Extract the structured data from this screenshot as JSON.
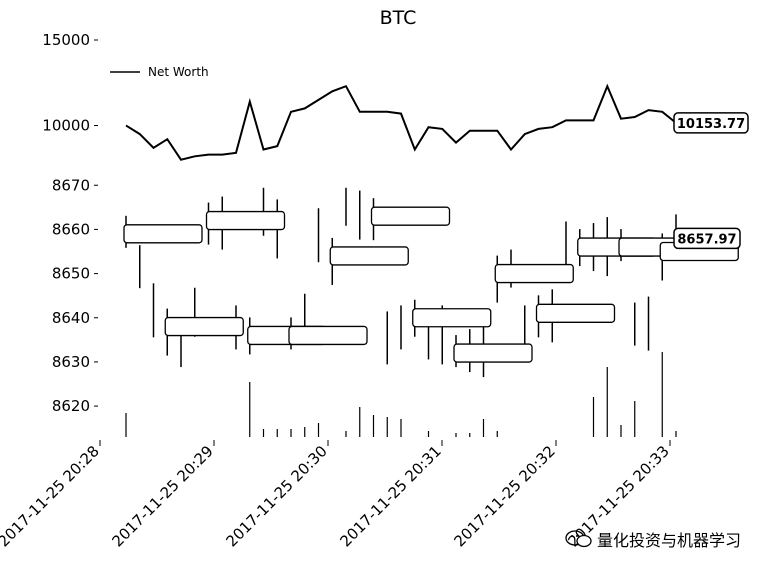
{
  "chart_data": [
    {
      "type": "line",
      "title": "BTC",
      "legend": {
        "entries": [
          "Net Worth"
        ],
        "placement": "top-left"
      },
      "ylim": [
        7400,
        15000
      ],
      "y_ticks": [
        15000,
        10000
      ],
      "y_tick_labels": [
        "15000",
        "10000"
      ],
      "series": [
        {
          "name": "Net Worth",
          "values": [
            10000,
            9500,
            8700,
            9200,
            8000,
            8200,
            8300,
            8300,
            8400,
            11400,
            8600,
            8800,
            10800,
            11000,
            11500,
            12000,
            12300,
            10800,
            10800,
            10800,
            10700,
            8600,
            9900,
            9800,
            9000,
            9700,
            9700,
            9700,
            8600,
            9500,
            9800,
            9900,
            10300,
            10300,
            10300,
            12300,
            10400,
            10500,
            10900,
            10800,
            10153.77
          ]
        }
      ],
      "last_value_label": "10153.77"
    },
    {
      "type": "candlestick",
      "ylim": [
        8613,
        8673
      ],
      "y_ticks": [
        8670,
        8660,
        8650,
        8640,
        8630,
        8620
      ],
      "y_tick_labels": [
        "8670",
        "8660",
        "8650",
        "8640",
        "8630",
        "8620"
      ],
      "x_tick_labels": [
        "2017-11-25 20:28",
        "2017-11-25 20:29",
        "2017-11-25 20:30",
        "2017-11-25 20:31",
        "2017-11-25 20:32",
        "2017-11-25 20:33"
      ],
      "close_values": [
        8659,
        8651,
        8641,
        8638,
        8632,
        8640,
        8662,
        8662,
        8636,
        8636,
        8664,
        8660,
        8636,
        8640,
        8658,
        8654,
        8664,
        8662,
        8663,
        8636,
        8636,
        8640,
        8636,
        8636,
        8632,
        8632,
        8632,
        8650,
        8650,
        8636,
        8641,
        8641,
        8655,
        8656,
        8656,
        8656,
        8656,
        8638,
        8638,
        8655,
        8657.97
      ],
      "last_value_label": "8657.97"
    }
  ],
  "watermark": {
    "text": "量化投资与机器学习",
    "icon": "wechat-icon"
  }
}
